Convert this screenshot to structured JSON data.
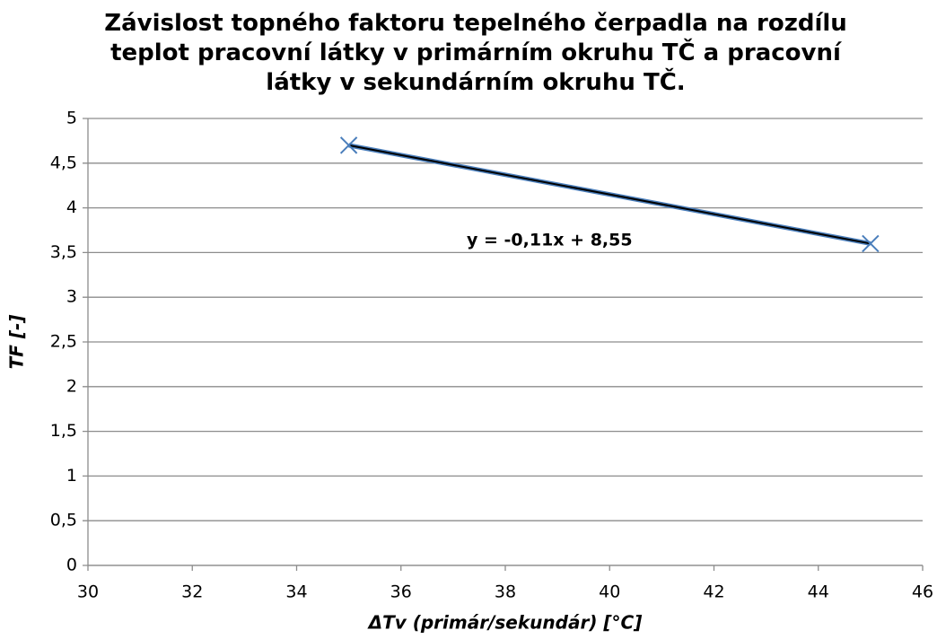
{
  "chart_data": {
    "type": "scatter",
    "title": "Závislost topného faktoru tepelného čerpadla na rozdílu teplot pracovní látky v primárním okruhu TČ a pracovní látky v sekundárním okruhu TČ.",
    "xlabel": "ΔTv (primár/sekundár) [°C]",
    "ylabel": "TF [-]",
    "series": [
      {
        "color": "#4a7ebb",
        "marker": "x",
        "line": true,
        "x": [
          35,
          45
        ],
        "values": [
          4.7,
          3.6
        ]
      }
    ],
    "trendline": {
      "slope": -0.11,
      "intercept": 8.55,
      "color": "#000000",
      "label": "y = -0,11x + 8,55"
    },
    "xlim": [
      30,
      46
    ],
    "xticks": [
      30,
      32,
      34,
      36,
      38,
      40,
      42,
      44,
      46
    ],
    "ylim": [
      0,
      5
    ],
    "yticks": [
      0,
      {
        "value": 0.5,
        "label": "0,5"
      },
      1,
      {
        "value": 1.5,
        "label": "1,5"
      },
      2,
      {
        "value": 2.5,
        "label": "2,5"
      },
      3,
      {
        "value": 3.5,
        "label": "3,5"
      },
      4,
      {
        "value": 4.5,
        "label": "4,5"
      },
      5
    ],
    "grid": true
  }
}
